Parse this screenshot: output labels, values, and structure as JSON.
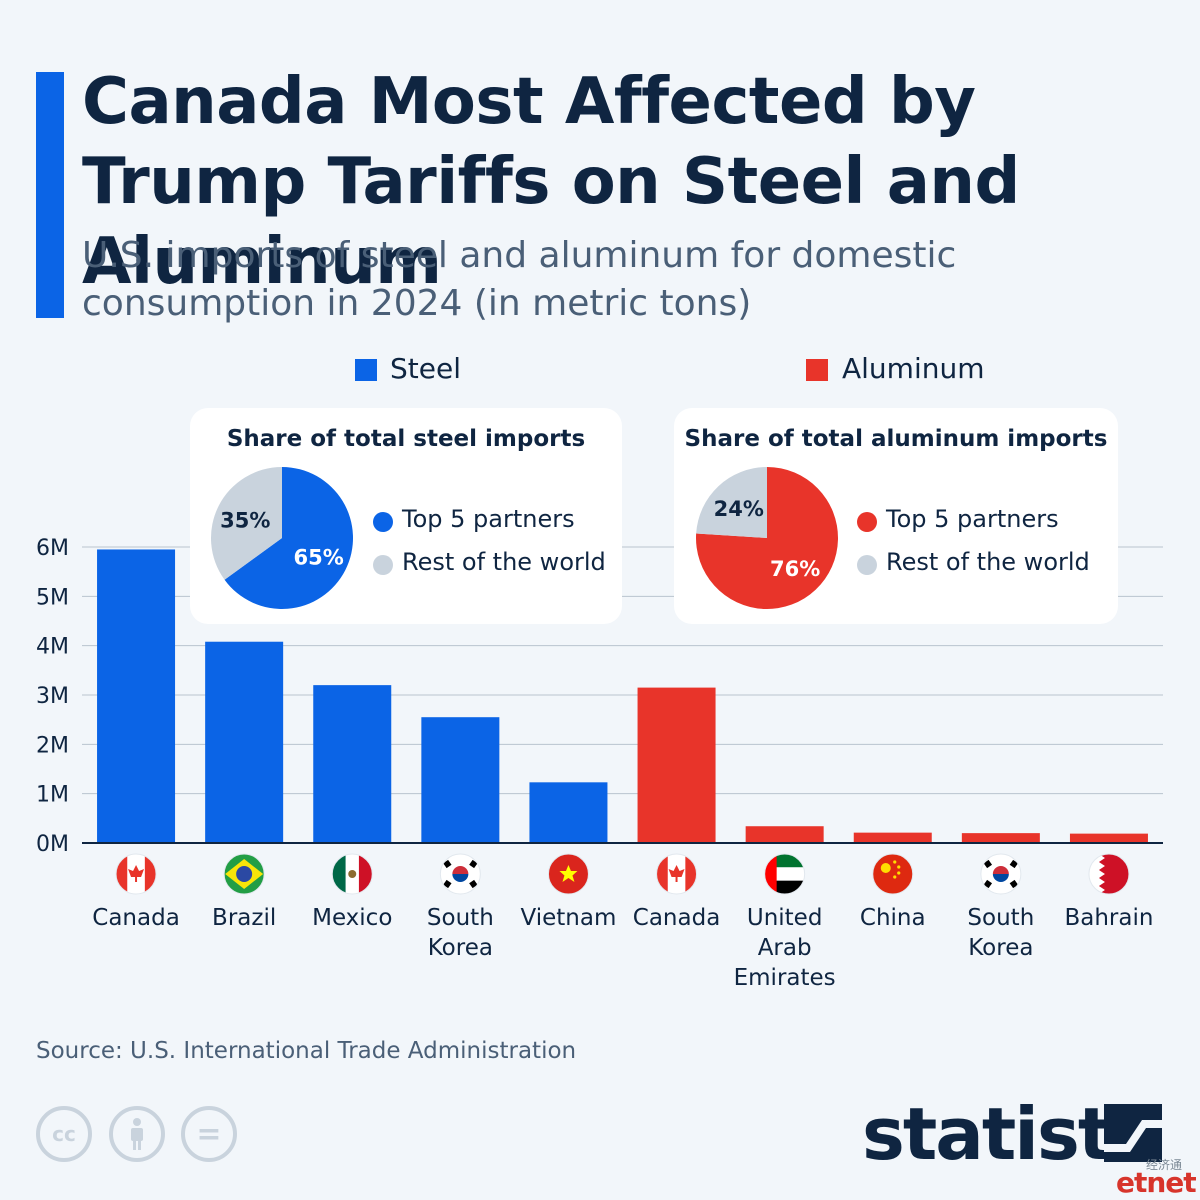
{
  "header": {
    "title": "Canada Most Affected by Trump Tariffs on Steel and Aluminum",
    "subtitle": "U.S. imports of steel and aluminum for domestic consumption in 2024 (in metric tons)"
  },
  "legend": [
    {
      "label": "Steel",
      "color": "#0b64e6"
    },
    {
      "label": "Aluminum",
      "color": "#e8342a"
    }
  ],
  "chart_data": [
    {
      "type": "bar",
      "title": "",
      "xlabel": "",
      "ylabel": "",
      "ylim": [
        0,
        6000000
      ],
      "y_ticks": [
        "0M",
        "1M",
        "2M",
        "3M",
        "4M",
        "5M",
        "6M"
      ],
      "grid": true,
      "categories": [
        "Canada",
        "Brazil",
        "Mexico",
        "South Korea",
        "Vietnam",
        "Canada",
        "United Arab Emirates",
        "China",
        "South Korea",
        "Bahrain"
      ],
      "category_lines": [
        [
          "Canada"
        ],
        [
          "Brazil"
        ],
        [
          "Mexico"
        ],
        [
          "South",
          "Korea"
        ],
        [
          "Vietnam"
        ],
        [
          "Canada"
        ],
        [
          "United",
          "Arab",
          "Emirates"
        ],
        [
          "China"
        ],
        [
          "South",
          "Korea"
        ],
        [
          "Bahrain"
        ]
      ],
      "flag_icons": [
        "canada-flag-icon",
        "brazil-flag-icon",
        "mexico-flag-icon",
        "south-korea-flag-icon",
        "vietnam-flag-icon",
        "canada-flag-icon",
        "uae-flag-icon",
        "china-flag-icon",
        "south-korea-flag-icon",
        "bahrain-flag-icon"
      ],
      "series": [
        {
          "name": "Steel",
          "color": "#0b64e6",
          "values": [
            5950000,
            4080000,
            3200000,
            2550000,
            1230000,
            null,
            null,
            null,
            null,
            null
          ]
        },
        {
          "name": "Aluminum",
          "color": "#e8342a",
          "values": [
            null,
            null,
            null,
            null,
            null,
            3150000,
            340000,
            210000,
            200000,
            190000
          ]
        }
      ]
    },
    {
      "type": "pie",
      "title": "Share of total steel imports",
      "slices": [
        {
          "label": "Top 5 partners",
          "value": 65,
          "text": "65%",
          "color": "#0b64e6"
        },
        {
          "label": "Rest of the world",
          "value": 35,
          "text": "35%",
          "color": "#c9d3dd"
        }
      ]
    },
    {
      "type": "pie",
      "title": "Share of total aluminum imports",
      "slices": [
        {
          "label": "Top 5 partners",
          "value": 76,
          "text": "76%",
          "color": "#e8342a"
        },
        {
          "label": "Rest of the world",
          "value": 24,
          "text": "24%",
          "color": "#c9d3dd"
        }
      ]
    }
  ],
  "footer": {
    "source": "Source: U.S. International Trade Administration",
    "license_icons": [
      "cc-icon",
      "attribution-icon",
      "no-derivatives-icon"
    ],
    "cc_text": "cc",
    "nd_text": "=",
    "brand": "statista",
    "watermark_cn": "经济通",
    "watermark_en": "etnet"
  }
}
